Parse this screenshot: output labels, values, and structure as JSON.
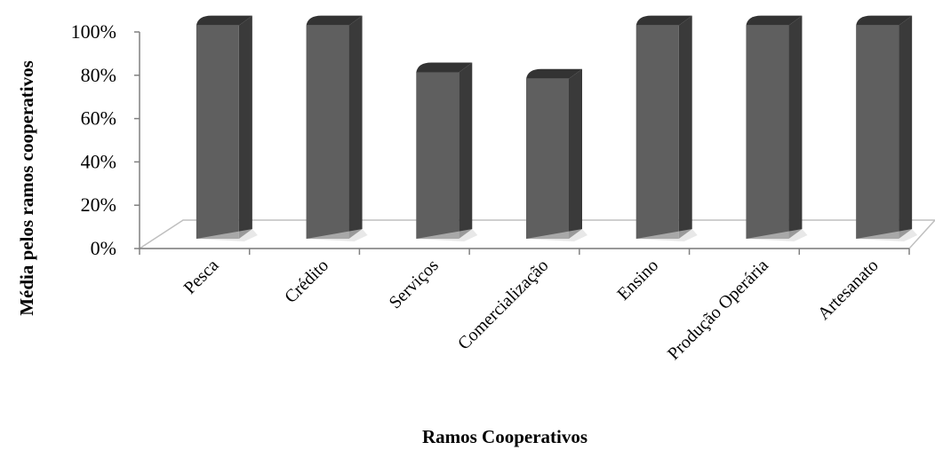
{
  "chart_data": {
    "type": "bar",
    "title": "",
    "xlabel": "Ramos Cooperativos",
    "ylabel": "Média pelos ramos cooperativos",
    "categories": [
      "Pesca",
      "Crédito",
      "Serviços",
      "Comercialização",
      "Ensino",
      "Produção Operária",
      "Artesanato"
    ],
    "values": [
      100,
      100,
      78,
      75,
      100,
      100,
      100
    ],
    "ylim": [
      0,
      100
    ],
    "yticks": [
      0,
      20,
      40,
      60,
      80,
      100
    ],
    "ytick_labels": [
      "0%",
      "20%",
      "40%",
      "60%",
      "80%",
      "100%"
    ],
    "grid": false,
    "legend": "none",
    "colors": {
      "bar_front": "#5f5f5f",
      "bar_side": "#3a3a3a",
      "bar_top": "#333333",
      "floor": "#ffffff",
      "floor_edge": "#bfbfbf",
      "axis": "#808080"
    }
  }
}
